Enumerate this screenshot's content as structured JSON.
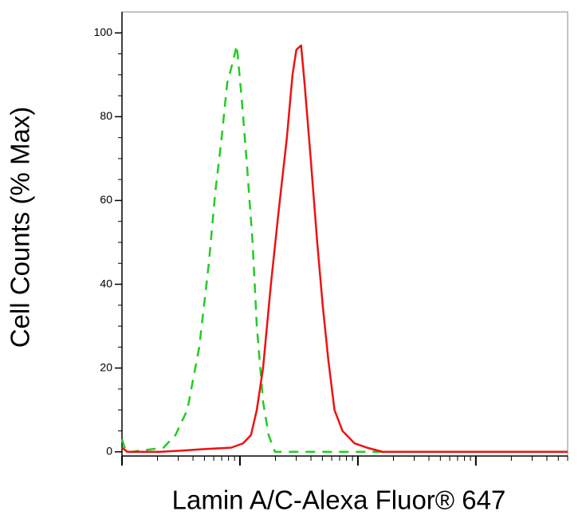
{
  "chart_data": {
    "type": "line",
    "xlabel": "Lamin A/C-Alexa Fluor® 647",
    "ylabel": "Cell Counts (% Max)",
    "xscale": "log",
    "xlim": [
      1,
      6000
    ],
    "xticks": [
      1,
      10,
      100,
      1000
    ],
    "ylim": [
      -1,
      105
    ],
    "yticks": [
      0,
      20,
      40,
      60,
      80,
      100
    ],
    "series": [
      {
        "color": "#22cc22",
        "style": "dashed",
        "x": [
          1,
          1.08,
          1.21,
          1.65,
          2.25,
          2.84,
          3.58,
          4.52,
          5.45,
          6.18,
          7.0,
          7.8,
          8.69,
          9.4,
          10.3,
          11.5,
          12.8,
          13.9,
          15.7,
          17.5,
          19.8,
          25.0,
          46.6,
          221,
          6000
        ],
        "values": [
          3,
          0,
          0,
          0.5,
          1,
          4,
          10,
          25,
          45,
          62,
          75,
          88,
          93,
          97,
          85,
          68,
          50,
          30,
          12,
          4,
          0,
          0,
          0,
          0,
          0
        ]
      },
      {
        "color": "#ee1111",
        "style": "solid",
        "x": [
          1,
          1.11,
          2.08,
          3.31,
          5.28,
          8.43,
          10.6,
          12.4,
          13.9,
          15.7,
          18.3,
          21.2,
          25.0,
          27.9,
          30.1,
          33.0,
          35.3,
          39.8,
          45.2,
          50.3,
          56.1,
          63.3,
          74.0,
          93.9,
          119,
          162,
          6000
        ],
        "values": [
          1,
          0,
          0,
          0.3,
          0.7,
          1,
          2,
          4,
          10,
          20,
          40,
          57,
          75,
          90,
          96,
          97,
          88,
          70,
          50,
          35,
          22,
          10,
          5,
          2,
          1,
          0,
          0
        ]
      }
    ]
  }
}
